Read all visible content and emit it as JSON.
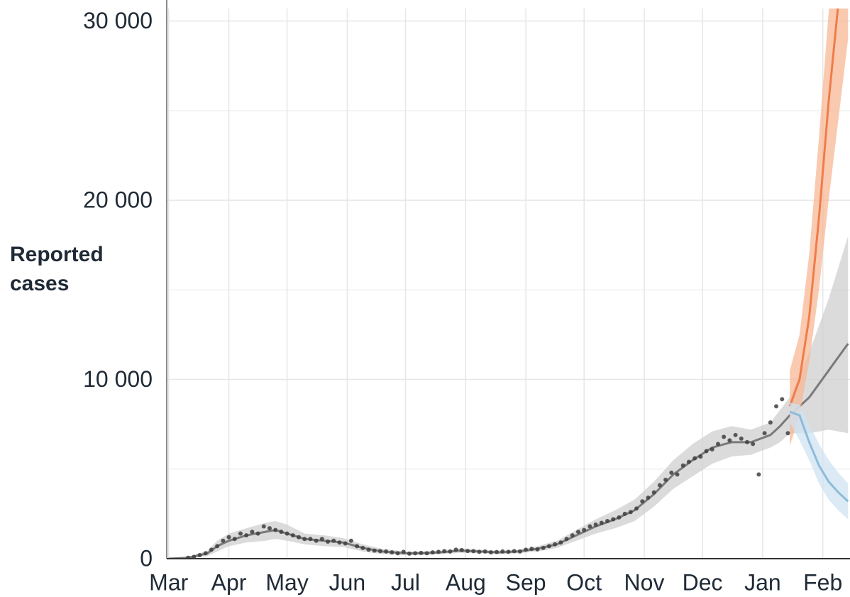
{
  "chart_data": {
    "type": "line",
    "ylabel": "Reported cases",
    "xlim": [
      -1,
      351
    ],
    "xticks": [
      {
        "value": 0,
        "label": "Mar"
      },
      {
        "value": 31,
        "label": "Apr"
      },
      {
        "value": 61,
        "label": "May"
      },
      {
        "value": 92,
        "label": "Jun"
      },
      {
        "value": 122,
        "label": "Jul"
      },
      {
        "value": 153,
        "label": "Aug"
      },
      {
        "value": 184,
        "label": "Sep"
      },
      {
        "value": 214,
        "label": "Oct"
      },
      {
        "value": 245,
        "label": "Nov"
      },
      {
        "value": 275,
        "label": "Dec"
      },
      {
        "value": 306,
        "label": "Jan"
      },
      {
        "value": 337,
        "label": "Feb"
      }
    ],
    "ylim": [
      0,
      30700
    ],
    "yticks": [
      0,
      {
        "value": 10000,
        "label": "10 000"
      },
      {
        "value": 20000,
        "label": "20 000"
      },
      {
        "value": 30000,
        "label": "30 000"
      }
    ],
    "minor_yticks": [
      5000,
      15000,
      25000
    ],
    "grid": true,
    "series": [
      {
        "type": "line",
        "color": "#7a7a7a",
        "band_color": "#cfcfcf",
        "x": [
          0,
          10,
          20,
          25,
          31,
          40,
          50,
          55,
          61,
          70,
          80,
          90,
          100,
          110,
          122,
          130,
          140,
          150,
          160,
          170,
          180,
          190,
          200,
          210,
          220,
          230,
          240,
          250,
          260,
          270,
          280,
          290,
          300,
          310,
          315,
          320,
          330,
          340,
          350
        ],
        "values": [
          0,
          50,
          300,
          700,
          1000,
          1300,
          1500,
          1600,
          1400,
          1100,
          1000,
          900,
          600,
          400,
          300,
          300,
          350,
          450,
          400,
          350,
          400,
          550,
          800,
          1300,
          1800,
          2200,
          2700,
          3600,
          4700,
          5500,
          6200,
          6500,
          6500,
          6900,
          7400,
          8000,
          9000,
          10500,
          12000
        ],
        "lower": [
          0,
          0,
          150,
          400,
          700,
          900,
          1000,
          1100,
          1000,
          800,
          700,
          650,
          400,
          250,
          200,
          200,
          250,
          330,
          300,
          250,
          300,
          400,
          600,
          1000,
          1400,
          1700,
          2100,
          2900,
          3900,
          4600,
          5300,
          5700,
          5800,
          6200,
          6500,
          7000,
          7000,
          7200,
          7000
        ],
        "upper": [
          0,
          100,
          450,
          1000,
          1400,
          1700,
          2000,
          2100,
          1900,
          1400,
          1300,
          1150,
          800,
          550,
          400,
          400,
          450,
          570,
          500,
          450,
          500,
          700,
          1000,
          1600,
          2200,
          2700,
          3300,
          4300,
          5500,
          6400,
          7100,
          7400,
          7200,
          7600,
          8300,
          9000,
          11500,
          14500,
          18000
        ]
      },
      {
        "type": "line",
        "color": "#f07c4a",
        "band_color": "#f7b895",
        "x": [
          320,
          325,
          330,
          335,
          340,
          345,
          350
        ],
        "values": [
          8500,
          10000,
          13500,
          19000,
          25500,
          31000,
          37000
        ],
        "lower": [
          6300,
          8000,
          11000,
          15000,
          20000,
          24500,
          29000
        ],
        "upper": [
          10500,
          12500,
          17000,
          23500,
          30500,
          37000,
          44000
        ]
      },
      {
        "type": "line",
        "color": "#8cbcd9",
        "band_color": "#cfe3f2",
        "x": [
          320,
          325,
          330,
          335,
          340,
          345,
          350
        ],
        "values": [
          8200,
          8000,
          6500,
          5200,
          4300,
          3700,
          3200
        ],
        "lower": [
          7600,
          6600,
          5500,
          4200,
          3300,
          2700,
          2200
        ],
        "upper": [
          8700,
          8600,
          7500,
          6400,
          5500,
          4800,
          4200
        ]
      },
      {
        "type": "scatter",
        "color": "#3f3f3f",
        "x": [
          10,
          13,
          16,
          19,
          22,
          25,
          28,
          31,
          34,
          37,
          40,
          43,
          46,
          49,
          52,
          55,
          58,
          61,
          64,
          67,
          70,
          73,
          76,
          79,
          82,
          85,
          88,
          91,
          94,
          97,
          100,
          103,
          106,
          109,
          112,
          115,
          118,
          121,
          124,
          127,
          130,
          133,
          136,
          139,
          142,
          145,
          148,
          151,
          154,
          157,
          160,
          163,
          166,
          169,
          172,
          175,
          178,
          181,
          184,
          187,
          190,
          193,
          196,
          199,
          202,
          205,
          208,
          211,
          214,
          217,
          220,
          223,
          226,
          229,
          232,
          235,
          238,
          241,
          244,
          247,
          250,
          253,
          256,
          259,
          262,
          265,
          268,
          271,
          274,
          277,
          280,
          283,
          286,
          289,
          292,
          295,
          298,
          301,
          304,
          307,
          310,
          313,
          316,
          319
        ],
        "values": [
          50,
          100,
          200,
          300,
          500,
          700,
          1000,
          1200,
          1100,
          1400,
          1300,
          1500,
          1400,
          1800,
          1700,
          1600,
          1500,
          1400,
          1300,
          1200,
          1100,
          1100,
          1000,
          1100,
          950,
          1000,
          900,
          850,
          1000,
          700,
          600,
          500,
          450,
          420,
          400,
          350,
          300,
          380,
          280,
          300,
          320,
          300,
          350,
          380,
          420,
          400,
          500,
          480,
          430,
          420,
          380,
          400,
          350,
          370,
          400,
          380,
          420,
          400,
          500,
          550,
          520,
          600,
          700,
          800,
          900,
          1100,
          1300,
          1500,
          1600,
          1800,
          1900,
          2000,
          2100,
          2200,
          2300,
          2500,
          2600,
          2800,
          3200,
          3400,
          3700,
          4100,
          4400,
          4800,
          4700,
          5200,
          5400,
          5600,
          5700,
          6000,
          6100,
          6400,
          6800,
          6600,
          6900,
          6700,
          6500,
          6400,
          4700,
          7000,
          7600,
          8500,
          8900,
          7000
        ]
      }
    ]
  }
}
